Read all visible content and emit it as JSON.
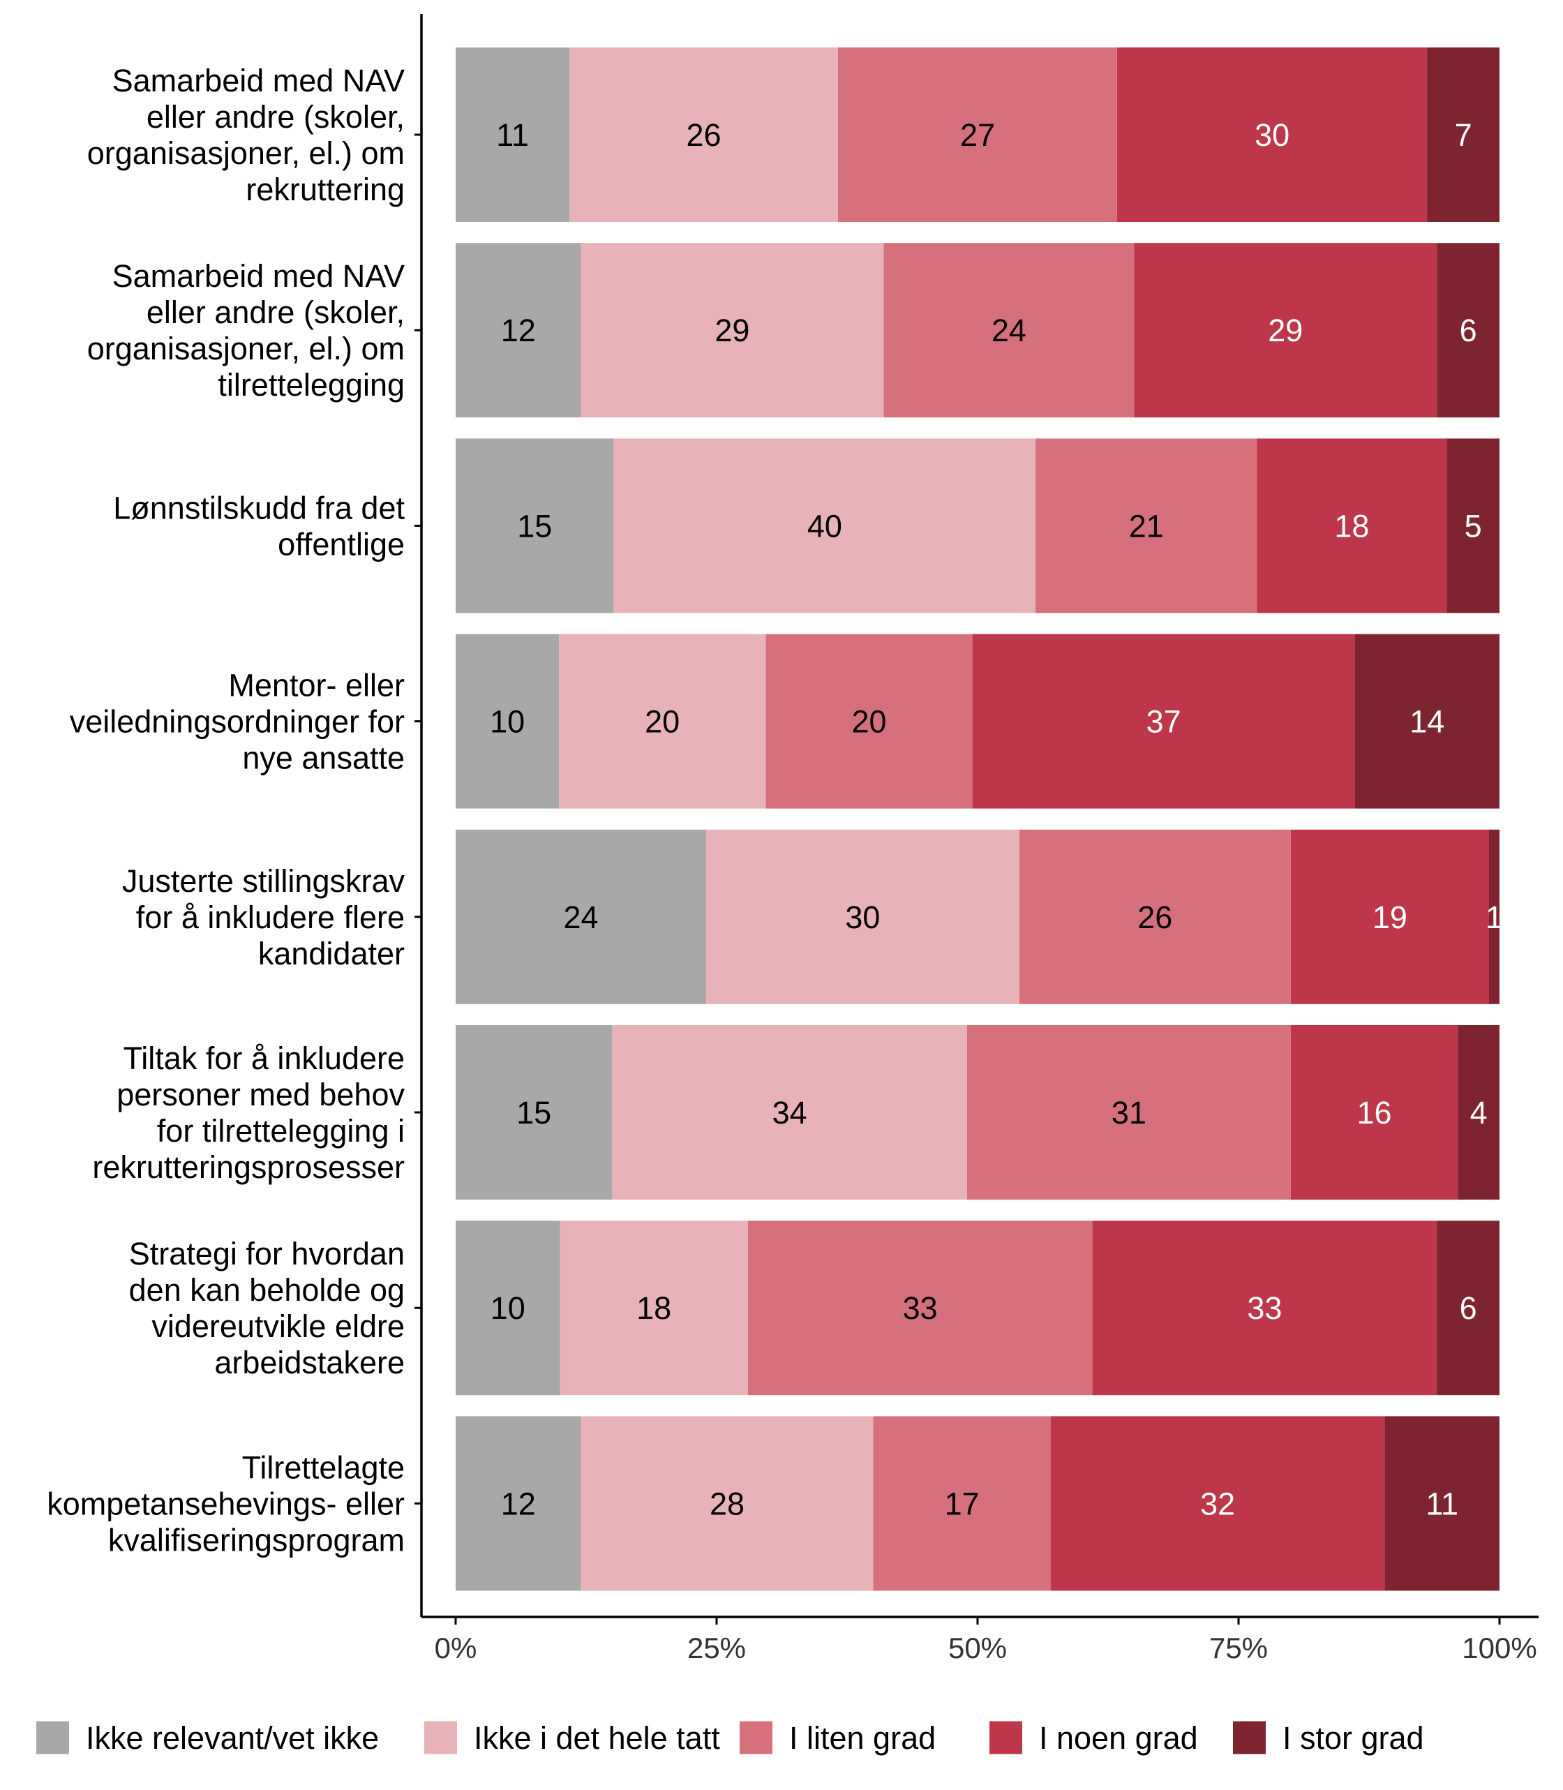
{
  "chart_data": {
    "type": "bar",
    "orientation": "horizontal",
    "stacked": true,
    "percent_stacked": true,
    "title": "",
    "xlabel": "",
    "ylabel": "",
    "xlim": [
      0,
      100
    ],
    "x_ticks": [
      "0%",
      "25%",
      "50%",
      "75%",
      "100%"
    ],
    "grid": false,
    "legend_position": "bottom",
    "categories": [
      [
        "Samarbeid med NAV",
        "eller andre (skoler,",
        "organisasjoner, el.) om",
        "rekruttering"
      ],
      [
        "Samarbeid med NAV",
        "eller andre (skoler,",
        "organisasjoner, el.) om",
        "tilrettelegging"
      ],
      [
        "Lønnstilskudd fra det",
        "offentlige"
      ],
      [
        "Mentor- eller",
        "veiledningsordninger for",
        "nye ansatte"
      ],
      [
        "Justerte stillingskrav",
        "for å inkludere flere",
        "kandidater"
      ],
      [
        "Tiltak for å inkludere",
        "personer med behov",
        "for tilrettelegging i",
        "rekrutteringsprosesser"
      ],
      [
        "Strategi for hvordan",
        "den kan beholde og",
        "videreutvikle eldre",
        "arbeidstakere"
      ],
      [
        "Tilrettelagte",
        "kompetansehevings- eller",
        "kvalifiseringsprogram"
      ]
    ],
    "series": [
      {
        "name": "Ikke relevant/vet ikke",
        "color": "#a8a8a8",
        "label_color": "#000000",
        "values": [
          11,
          12,
          15,
          10,
          24,
          15,
          10,
          12
        ]
      },
      {
        "name": "Ikke i det hele tatt",
        "color": "#e8b3b8",
        "label_color": "#000000",
        "values": [
          26,
          29,
          40,
          20,
          30,
          34,
          18,
          28
        ]
      },
      {
        "name": "I liten grad",
        "color": "#d7707d",
        "label_color": "#000000",
        "values": [
          27,
          24,
          21,
          20,
          26,
          31,
          33,
          17
        ]
      },
      {
        "name": "I noen grad",
        "color": "#be364a",
        "label_color": "#ffffff",
        "values": [
          30,
          29,
          18,
          37,
          19,
          16,
          33,
          32
        ]
      },
      {
        "name": "I stor grad",
        "color": "#7e2430",
        "label_color": "#ffffff",
        "values": [
          7,
          6,
          5,
          14,
          1,
          4,
          6,
          11
        ]
      }
    ]
  }
}
